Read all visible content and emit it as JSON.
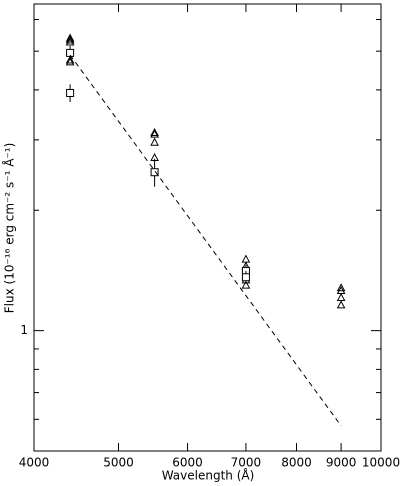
{
  "chart_data": {
    "type": "scatter",
    "xlabel": "Wavelength (Å)",
    "ylabel": "Flux (10⁻¹⁶ erg cm⁻² s⁻¹ Å⁻¹)",
    "xscale": "log",
    "yscale": "log",
    "xlim": [
      4000,
      10000
    ],
    "ylim": [
      0.5,
      6.56
    ],
    "xticks": [
      4000,
      5000,
      6000,
      7000,
      8000,
      9000,
      10000
    ],
    "yticks": [
      1
    ],
    "yminor_ticks": [
      0.5,
      0.6,
      0.7,
      0.8,
      0.9,
      2,
      3,
      4,
      5,
      6
    ],
    "color": "#000000",
    "series": [
      {
        "marker": "triangle",
        "x": [
          4400,
          4400,
          4400,
          4400,
          4400,
          5500,
          5500,
          5500,
          5500,
          7000,
          7000,
          7000,
          7000,
          9000,
          9000,
          9000,
          9000
        ],
        "values": [
          5.39,
          5.33,
          5.27,
          4.75,
          4.7,
          3.13,
          3.1,
          2.96,
          2.71,
          1.51,
          1.45,
          1.34,
          1.3,
          1.28,
          1.26,
          1.21,
          1.16
        ]
      },
      {
        "marker": "square",
        "x": [
          4400,
          4400,
          5500,
          7000,
          7000
        ],
        "values": [
          4.95,
          3.93,
          2.49,
          1.41,
          1.36
        ],
        "errors": [
          0.2,
          0.2,
          0.2,
          0.05,
          0.05
        ]
      },
      {
        "marker": "dashed-line",
        "x": [
          4400,
          9000
        ],
        "values": [
          4.89,
          0.578
        ]
      }
    ]
  }
}
